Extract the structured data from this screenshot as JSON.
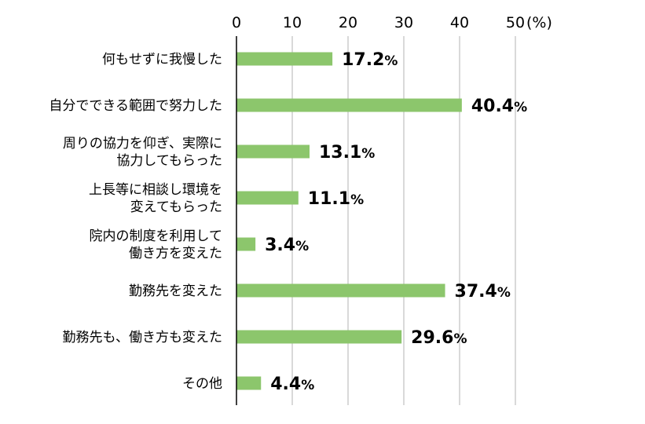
{
  "chart_data": {
    "type": "bar",
    "orientation": "horizontal",
    "categories": [
      [
        "何もせずに我慢した"
      ],
      [
        "自分でできる範囲で努力した"
      ],
      [
        "周りの協力を仰ぎ、実際に",
        "協力してもらった"
      ],
      [
        "上長等に相談し環境を",
        "変えてもらった"
      ],
      [
        "院内の制度を利用して",
        "働き方を変えた"
      ],
      [
        "勤務先を変えた"
      ],
      [
        "勤務先も、働き方も変えた"
      ],
      [
        "その他"
      ]
    ],
    "values": [
      17.2,
      40.4,
      13.1,
      11.1,
      3.4,
      37.4,
      29.6,
      4.4
    ],
    "value_labels": [
      "17.2",
      "40.4",
      "13.1",
      "11.1",
      "3.4",
      "37.4",
      "29.6",
      "4.4"
    ],
    "value_suffix": "%",
    "xlim": [
      0,
      50
    ],
    "xticks": [
      0,
      10,
      20,
      30,
      40,
      50
    ],
    "xtick_labels": [
      "0",
      "10",
      "20",
      "30",
      "40",
      "50"
    ],
    "axis_unit": "(%)",
    "bar_color": "#8cc66c",
    "grid": true,
    "axis_position": "top",
    "legend": "none"
  }
}
